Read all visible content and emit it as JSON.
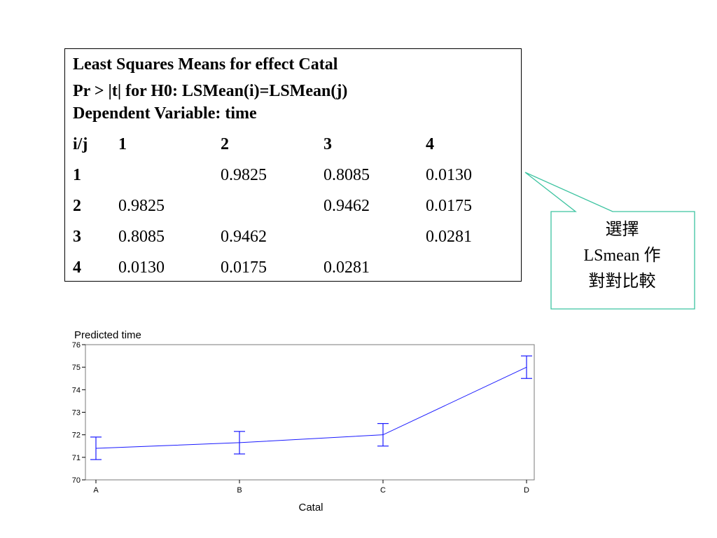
{
  "table": {
    "title_lines": [
      "Least Squares Means for effect Catal",
      "Pr > |t| for H0: LSMean(i)=LSMean(j)",
      "Dependent Variable: time"
    ],
    "corner_label": "i/j",
    "column_headers": [
      "1",
      "2",
      "3",
      "4"
    ],
    "rows": [
      {
        "label": "1",
        "values": [
          "",
          "0.9825",
          "0.8085",
          "0.0130"
        ]
      },
      {
        "label": "2",
        "values": [
          "0.9825",
          "",
          "0.9462",
          "0.0175"
        ]
      },
      {
        "label": "3",
        "values": [
          "0.8085",
          "0.9462",
          "",
          "0.0281"
        ]
      },
      {
        "label": "4",
        "values": [
          "0.0130",
          "0.0175",
          "0.0281",
          ""
        ]
      }
    ]
  },
  "callout": {
    "lines": [
      "選擇",
      "LSmean 作",
      "對對比較"
    ],
    "border_color": "#3cc3a0"
  },
  "chart_data": {
    "type": "line",
    "title": "Predicted time",
    "xlabel": "Catal",
    "ylabel": "",
    "categories": [
      "A",
      "B",
      "C",
      "D"
    ],
    "series": [
      {
        "values": [
          71.4,
          71.65,
          72.0,
          75.0
        ],
        "error_low": [
          70.9,
          71.15,
          71.5,
          74.5
        ],
        "error_high": [
          71.9,
          72.15,
          72.5,
          75.5
        ]
      }
    ],
    "ylim": [
      70,
      76
    ],
    "yticks": [
      70,
      71,
      72,
      73,
      74,
      75,
      76
    ],
    "color": "#1a1aff",
    "grid": false
  }
}
